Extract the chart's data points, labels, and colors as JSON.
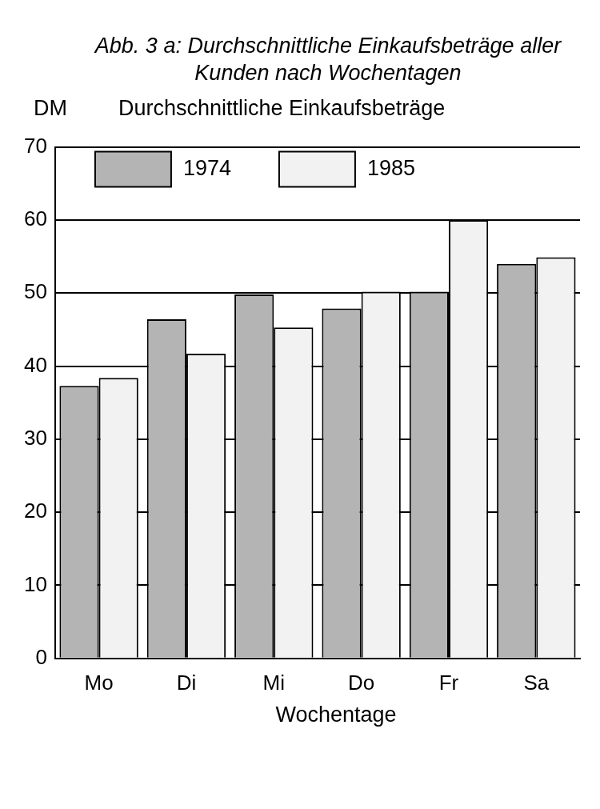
{
  "chart_data": {
    "type": "bar",
    "title": "Abb. 3 a: Durchschnittliche Einkaufsbeträge aller Kunden nach Wochentagen",
    "subtitle": "Durchschnittliche Einkaufsbeträge",
    "ylabel": "DM",
    "xlabel": "Wochentage",
    "categories": [
      "Mo",
      "Di",
      "Mi",
      "Do",
      "Fr",
      "Sa"
    ],
    "series": [
      {
        "name": "1974",
        "color": "#b4b4b4",
        "values": [
          37.3,
          46.4,
          49.8,
          47.9,
          50.2,
          54.0
        ]
      },
      {
        "name": "1985",
        "color": "#f2f2f2",
        "values": [
          38.4,
          41.7,
          45.3,
          50.2,
          60.0,
          54.9
        ]
      }
    ],
    "ylim": [
      0,
      70
    ],
    "yticks": [
      0,
      10,
      20,
      30,
      40,
      50,
      60,
      70
    ],
    "grid": "y",
    "legend": "top left"
  }
}
